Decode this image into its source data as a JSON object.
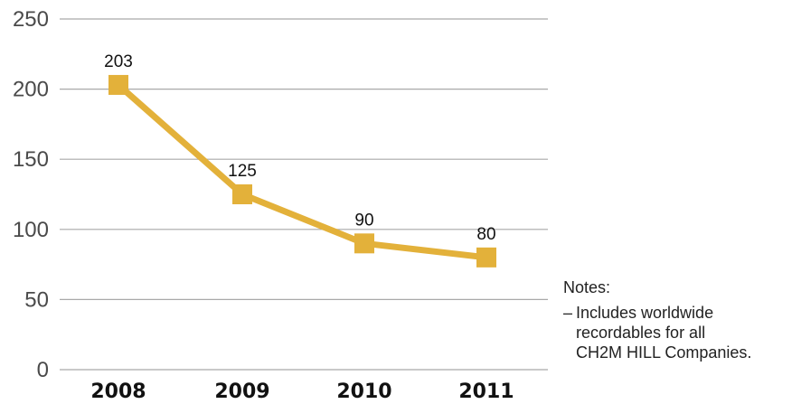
{
  "chart_data": {
    "type": "line",
    "title": "",
    "xlabel": "",
    "ylabel": "",
    "categories": [
      "2008",
      "2009",
      "2010",
      "2011"
    ],
    "series": [
      {
        "values": [
          203,
          125,
          90,
          80
        ],
        "color": "#e3b13a"
      }
    ],
    "data_labels": [
      "203",
      "125",
      "90",
      "80"
    ],
    "yticks": [
      0,
      50,
      100,
      150,
      200,
      250
    ],
    "ylim": [
      0,
      250
    ],
    "grid": true,
    "marker": "square"
  },
  "notes": {
    "title": "Notes:",
    "dash": "–",
    "text": "Includes worldwide\nrecordables for all\nCH2M HILL Companies."
  }
}
